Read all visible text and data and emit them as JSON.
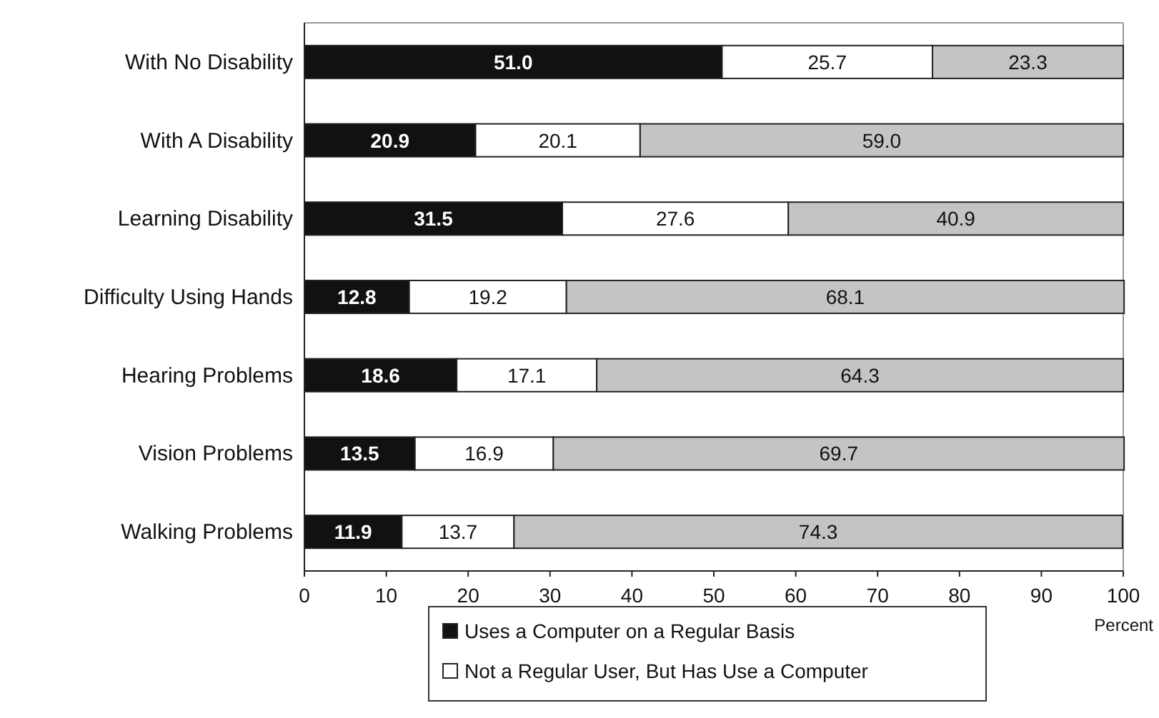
{
  "chart_data": {
    "type": "bar",
    "orientation": "horizontal",
    "stacked": true,
    "xlabel": "Percent",
    "categories": [
      "With No Disability",
      "With A Disability",
      "Learning Disability",
      "Difficulty Using Hands",
      "Hearing Problems",
      "Vision Problems",
      "Walking Problems"
    ],
    "series": [
      {
        "name": "Uses a Computer on a Regular Basis",
        "color": "#111111",
        "values": [
          51.0,
          20.9,
          31.5,
          12.8,
          18.6,
          13.5,
          11.9
        ]
      },
      {
        "name": "Not a Regular User, But Has Use a Computer",
        "color": "#ffffff",
        "values": [
          25.7,
          20.1,
          27.6,
          19.2,
          17.1,
          16.9,
          13.7
        ]
      },
      {
        "color": "#c4c4c4",
        "values": [
          23.3,
          59.0,
          40.9,
          68.1,
          64.3,
          69.7,
          74.3
        ]
      }
    ],
    "value_labels": [
      [
        "51.0",
        "20.9",
        "31.5",
        "12.8",
        "18.6",
        "13.5",
        "11.9"
      ],
      [
        "25.7",
        "20.1",
        "27.6",
        "19.2",
        "17.1",
        "16.9",
        "13.7"
      ],
      [
        "23.3",
        "59.0",
        "40.9",
        "68.1",
        "64.3",
        "69.7",
        "74.3"
      ]
    ],
    "xlim": [
      0,
      100
    ],
    "xticks": [
      0,
      10,
      20,
      30,
      40,
      50,
      60,
      70,
      80,
      90,
      100
    ],
    "grid": false,
    "legend": "bottom"
  }
}
